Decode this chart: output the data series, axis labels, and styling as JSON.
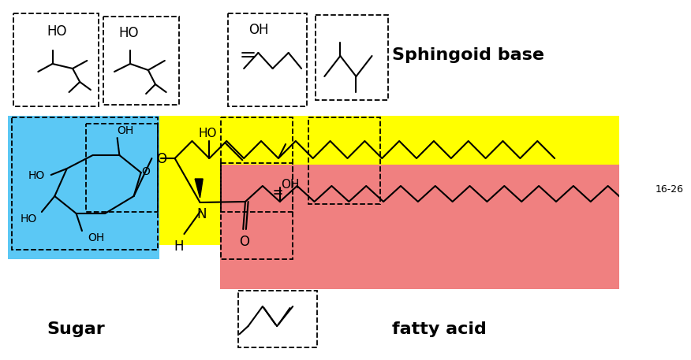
{
  "yellow_color": "#FFFF00",
  "red_color": "#F08080",
  "blue_color": "#5BC8F5",
  "bg_color": "#FFFFFF",
  "label_sugar": "Sugar",
  "label_sphingoid": "Sphingoid base",
  "label_fatty": "fatty acid",
  "label_1626": "16-26"
}
